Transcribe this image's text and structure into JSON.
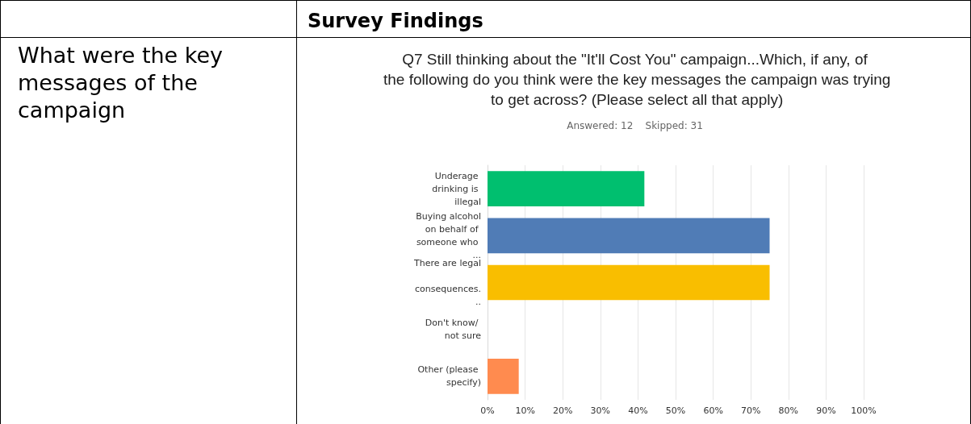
{
  "chart_data": {
    "type": "bar",
    "orientation": "horizontal",
    "title": "Q7 Still thinking about the \"It'll Cost You\" campaign...Which, if any, of the following do you think were the key messages the campaign was trying to get across? (Please select all that apply)",
    "subtitle": "Answered: 12    Skipped: 31",
    "annotations": [
      "Survey Findings",
      "What were the key messages of the campaign"
    ],
    "categories": [
      "Underage drinking is illegal",
      "Buying alcohol on behalf of someone who ...",
      "There are legal consequences...",
      "Don't know/ not sure",
      "Other (please specify)"
    ],
    "values": [
      41.7,
      75,
      75,
      0,
      8.3
    ],
    "colors": [
      "#00bf6f",
      "#507cb6",
      "#f9be00",
      "#6bc8cd",
      "#ff8b4f"
    ],
    "xlim": [
      0,
      100
    ],
    "xticks": [
      {
        "value": 0,
        "label": "0%"
      },
      {
        "value": 10,
        "label": "10%"
      },
      {
        "value": 20,
        "label": "20%"
      },
      {
        "value": 30,
        "label": "30%"
      },
      {
        "value": 40,
        "label": "40%"
      },
      {
        "value": 50,
        "label": "50%"
      },
      {
        "value": 60,
        "label": "60%"
      },
      {
        "value": 70,
        "label": "70%"
      },
      {
        "value": 80,
        "label": "80%"
      },
      {
        "value": 90,
        "label": "90%"
      },
      {
        "value": 100,
        "label": "100%"
      }
    ],
    "grid": "x"
  }
}
